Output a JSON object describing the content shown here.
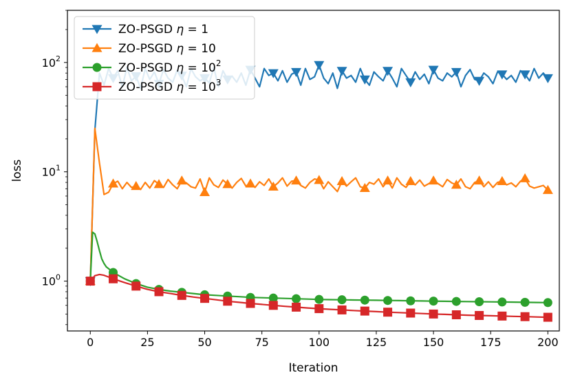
{
  "chart_data": {
    "type": "line",
    "xlabel": "Iteration",
    "ylabel": "loss",
    "xlim": [
      -10,
      205
    ],
    "ylim": [
      0.35,
      300
    ],
    "yscale": "log",
    "xticks": [
      0,
      25,
      50,
      75,
      100,
      125,
      150,
      175,
      200
    ],
    "xtick_labels": [
      "0",
      "25",
      "50",
      "75",
      "100",
      "125",
      "150",
      "175",
      "200"
    ],
    "yticks": [
      1,
      10,
      100
    ],
    "ytick_labels": [
      {
        "base": "10",
        "exp": "0"
      },
      {
        "base": "10",
        "exp": "1"
      },
      {
        "base": "10",
        "exp": "2"
      }
    ],
    "legend_position": "upper-left",
    "series": [
      {
        "name": "ZO-PSGD η = 1",
        "legend": {
          "prefix": "ZO-PSGD ",
          "eta": "η",
          "eq": " = ",
          "base": "1",
          "exp": ""
        },
        "color": "#1f77b4",
        "marker": "triangle-down",
        "x": [
          0,
          2,
          4,
          6,
          8,
          10,
          12,
          14,
          16,
          18,
          20,
          22,
          24,
          26,
          28,
          30,
          32,
          34,
          36,
          38,
          40,
          42,
          44,
          46,
          48,
          50,
          52,
          54,
          56,
          58,
          60,
          62,
          64,
          66,
          68,
          70,
          72,
          74,
          76,
          78,
          80,
          82,
          84,
          86,
          88,
          90,
          92,
          94,
          96,
          98,
          100,
          102,
          104,
          106,
          108,
          110,
          112,
          114,
          116,
          118,
          120,
          122,
          124,
          126,
          128,
          130,
          132,
          134,
          136,
          138,
          140,
          142,
          144,
          146,
          148,
          150,
          152,
          154,
          156,
          158,
          160,
          162,
          164,
          166,
          168,
          170,
          172,
          174,
          176,
          178,
          180,
          182,
          184,
          186,
          188,
          190,
          192,
          194,
          196,
          198,
          200
        ],
        "y": [
          1,
          24,
          80,
          62,
          88,
          72,
          84,
          60,
          90,
          68,
          75,
          58,
          88,
          70,
          82,
          64,
          86,
          72,
          66,
          85,
          76,
          60,
          88,
          74,
          68,
          72,
          65,
          90,
          60,
          84,
          70,
          75,
          66,
          80,
          62,
          86,
          72,
          60,
          88,
          76,
          80,
          68,
          84,
          66,
          78,
          82,
          62,
          88,
          70,
          74,
          95,
          72,
          64,
          80,
          58,
          84,
          72,
          76,
          66,
          88,
          70,
          62,
          82,
          74,
          68,
          84,
          72,
          60,
          88,
          76,
          66,
          82,
          70,
          78,
          64,
          86,
          72,
          68,
          80,
          74,
          82,
          60,
          76,
          86,
          70,
          68,
          80,
          74,
          64,
          82,
          78,
          70,
          76,
          66,
          84,
          78,
          68,
          88,
          72,
          80,
          72
        ]
      },
      {
        "name": "ZO-PSGD η = 10",
        "legend": {
          "prefix": "ZO-PSGD ",
          "eta": "η",
          "eq": " = ",
          "base": "10",
          "exp": ""
        },
        "color": "#ff7f0e",
        "marker": "triangle-up",
        "x": [
          0,
          2,
          4,
          6,
          8,
          10,
          12,
          14,
          16,
          18,
          20,
          22,
          24,
          26,
          28,
          30,
          32,
          34,
          36,
          38,
          40,
          42,
          44,
          46,
          48,
          50,
          52,
          54,
          56,
          58,
          60,
          62,
          64,
          66,
          68,
          70,
          72,
          74,
          76,
          78,
          80,
          82,
          84,
          86,
          88,
          90,
          92,
          94,
          96,
          98,
          100,
          102,
          104,
          106,
          108,
          110,
          112,
          114,
          116,
          118,
          120,
          122,
          124,
          126,
          128,
          130,
          132,
          134,
          136,
          138,
          140,
          142,
          144,
          146,
          148,
          150,
          152,
          154,
          156,
          158,
          160,
          162,
          164,
          166,
          168,
          170,
          172,
          174,
          176,
          178,
          180,
          182,
          184,
          186,
          188,
          190,
          192,
          194,
          196,
          198,
          200
        ],
        "y": [
          1,
          25,
          12,
          6.2,
          6.5,
          7.8,
          8.2,
          7.0,
          8.0,
          7.2,
          7.4,
          6.9,
          8.0,
          7.1,
          8.3,
          7.7,
          7.2,
          8.5,
          7.6,
          7.0,
          8.3,
          7.9,
          7.3,
          7.1,
          8.6,
          6.5,
          8.8,
          7.6,
          7.2,
          8.4,
          7.7,
          7.1,
          8.0,
          8.7,
          7.4,
          7.8,
          7.2,
          8.1,
          7.5,
          8.6,
          7.3,
          7.9,
          8.8,
          7.4,
          8.2,
          8.3,
          7.5,
          7.1,
          8.0,
          8.6,
          8.4,
          7.0,
          8.1,
          7.3,
          6.6,
          8.2,
          7.4,
          8.1,
          8.8,
          7.3,
          7.1,
          8.0,
          7.7,
          8.6,
          7.3,
          8.3,
          7.1,
          8.8,
          7.7,
          7.2,
          8.2,
          7.6,
          8.4,
          7.4,
          7.8,
          8.3,
          7.8,
          7.3,
          8.5,
          7.9,
          7.6,
          8.6,
          7.3,
          7.0,
          8.0,
          8.3,
          7.3,
          8.1,
          7.2,
          8.0,
          8.2,
          7.6,
          7.9,
          7.3,
          8.2,
          8.7,
          7.4,
          7.1,
          7.3,
          7.5,
          6.8
        ]
      },
      {
        "name": "ZO-PSGD η = 10^2",
        "legend": {
          "prefix": "ZO-PSGD ",
          "eta": "η",
          "eq": " = ",
          "base": "10",
          "exp": "2"
        },
        "color": "#2ca02c",
        "marker": "circle",
        "x": [
          0,
          1,
          2,
          3,
          4,
          5,
          6,
          7,
          8,
          9,
          10,
          15,
          20,
          25,
          30,
          35,
          40,
          45,
          50,
          55,
          60,
          65,
          70,
          75,
          80,
          85,
          90,
          95,
          100,
          105,
          110,
          115,
          120,
          125,
          130,
          135,
          140,
          145,
          150,
          155,
          160,
          165,
          170,
          175,
          180,
          185,
          190,
          195,
          200
        ],
        "y": [
          1,
          2.8,
          2.7,
          2.3,
          1.9,
          1.6,
          1.45,
          1.35,
          1.3,
          1.25,
          1.2,
          1.05,
          0.95,
          0.88,
          0.84,
          0.81,
          0.79,
          0.77,
          0.75,
          0.74,
          0.73,
          0.72,
          0.71,
          0.705,
          0.7,
          0.695,
          0.69,
          0.685,
          0.68,
          0.677,
          0.675,
          0.672,
          0.67,
          0.668,
          0.665,
          0.663,
          0.66,
          0.658,
          0.656,
          0.654,
          0.652,
          0.65,
          0.648,
          0.646,
          0.644,
          0.642,
          0.64,
          0.638,
          0.636
        ]
      },
      {
        "name": "ZO-PSGD η = 10^3",
        "legend": {
          "prefix": "ZO-PSGD ",
          "eta": "η",
          "eq": " = ",
          "base": "10",
          "exp": "3"
        },
        "color": "#d62728",
        "marker": "square",
        "x": [
          0,
          2,
          4,
          6,
          8,
          10,
          15,
          20,
          25,
          30,
          35,
          40,
          45,
          50,
          55,
          60,
          65,
          70,
          75,
          80,
          85,
          90,
          95,
          100,
          105,
          110,
          115,
          120,
          125,
          130,
          135,
          140,
          145,
          150,
          155,
          160,
          165,
          170,
          175,
          180,
          185,
          190,
          195,
          200
        ],
        "y": [
          1,
          1.12,
          1.15,
          1.13,
          1.09,
          1.05,
          0.97,
          0.9,
          0.84,
          0.8,
          0.77,
          0.74,
          0.715,
          0.695,
          0.675,
          0.655,
          0.64,
          0.625,
          0.612,
          0.6,
          0.588,
          0.578,
          0.568,
          0.56,
          0.552,
          0.545,
          0.538,
          0.532,
          0.526,
          0.52,
          0.515,
          0.51,
          0.505,
          0.5,
          0.496,
          0.492,
          0.488,
          0.485,
          0.482,
          0.479,
          0.476,
          0.473,
          0.47,
          0.467
        ]
      }
    ]
  }
}
